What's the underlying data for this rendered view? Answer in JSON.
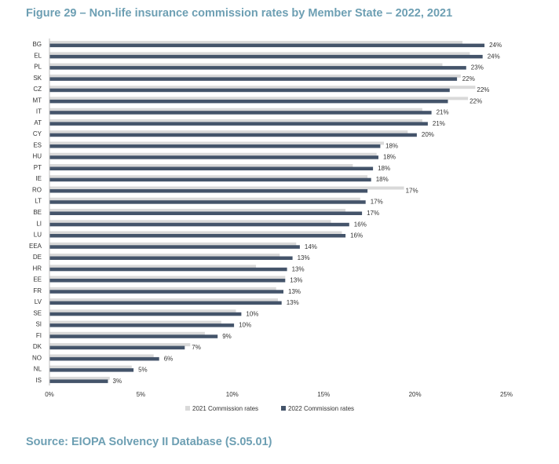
{
  "figure": {
    "title": "Figure 29 – Non-life insurance commission rates by Member State – 2022, 2021",
    "source": "Source: EIOPA Solvency II Database (S.05.01)"
  },
  "chart_data": {
    "type": "bar",
    "orientation": "horizontal",
    "title": "Figure 29 – Non-life insurance commission rates by Member State – 2022, 2021",
    "xlabel": "",
    "ylabel": "",
    "xlim": [
      0,
      25
    ],
    "x_ticks": [
      "0%",
      "5%",
      "10%",
      "15%",
      "20%",
      "25%"
    ],
    "x_tick_values": [
      0,
      5,
      10,
      15,
      20,
      25
    ],
    "grid": false,
    "legend_position": "bottom",
    "data_label_series": "2022 Commission rates",
    "categories": [
      "BG",
      "EL",
      "PL",
      "SK",
      "CZ",
      "MT",
      "IT",
      "AT",
      "CY",
      "ES",
      "HU",
      "PT",
      "IE",
      "RO",
      "LT",
      "BE",
      "LI",
      "LU",
      "EEA",
      "DE",
      "HR",
      "EE",
      "FR",
      "LV",
      "SE",
      "SI",
      "FI",
      "DK",
      "NO",
      "NL",
      "IS"
    ],
    "series": [
      {
        "name": "2021 Commission rates",
        "color": "#d9d9d9",
        "values": [
          22.6,
          23.0,
          21.5,
          22.5,
          23.3,
          22.9,
          20.4,
          20.4,
          19.6,
          18.3,
          17.9,
          16.6,
          17.4,
          19.4,
          17.0,
          16.2,
          15.4,
          16.0,
          13.5,
          12.6,
          11.3,
          12.9,
          12.4,
          12.5,
          10.2,
          9.4,
          8.5,
          7.7,
          5.7,
          4.5,
          3.3
        ]
      },
      {
        "name": "2022 Commission rates",
        "color": "#44546a",
        "values": [
          23.8,
          23.7,
          22.8,
          22.3,
          21.9,
          21.8,
          20.9,
          20.7,
          20.1,
          18.1,
          18.0,
          17.7,
          17.6,
          17.4,
          17.3,
          17.1,
          16.4,
          16.2,
          13.7,
          13.3,
          13.0,
          12.9,
          12.8,
          12.7,
          10.5,
          10.1,
          9.2,
          7.4,
          6.0,
          4.6,
          3.2
        ]
      }
    ],
    "data_labels": [
      "24%",
      "24%",
      "23%",
      "22%",
      "22%",
      "22%",
      "21%",
      "21%",
      "20%",
      "18%",
      "18%",
      "18%",
      "18%",
      "17%",
      "17%",
      "17%",
      "16%",
      "16%",
      "14%",
      "13%",
      "13%",
      "13%",
      "13%",
      "13%",
      "10%",
      "10%",
      "9%",
      "7%",
      "6%",
      "5%",
      "3%"
    ]
  }
}
